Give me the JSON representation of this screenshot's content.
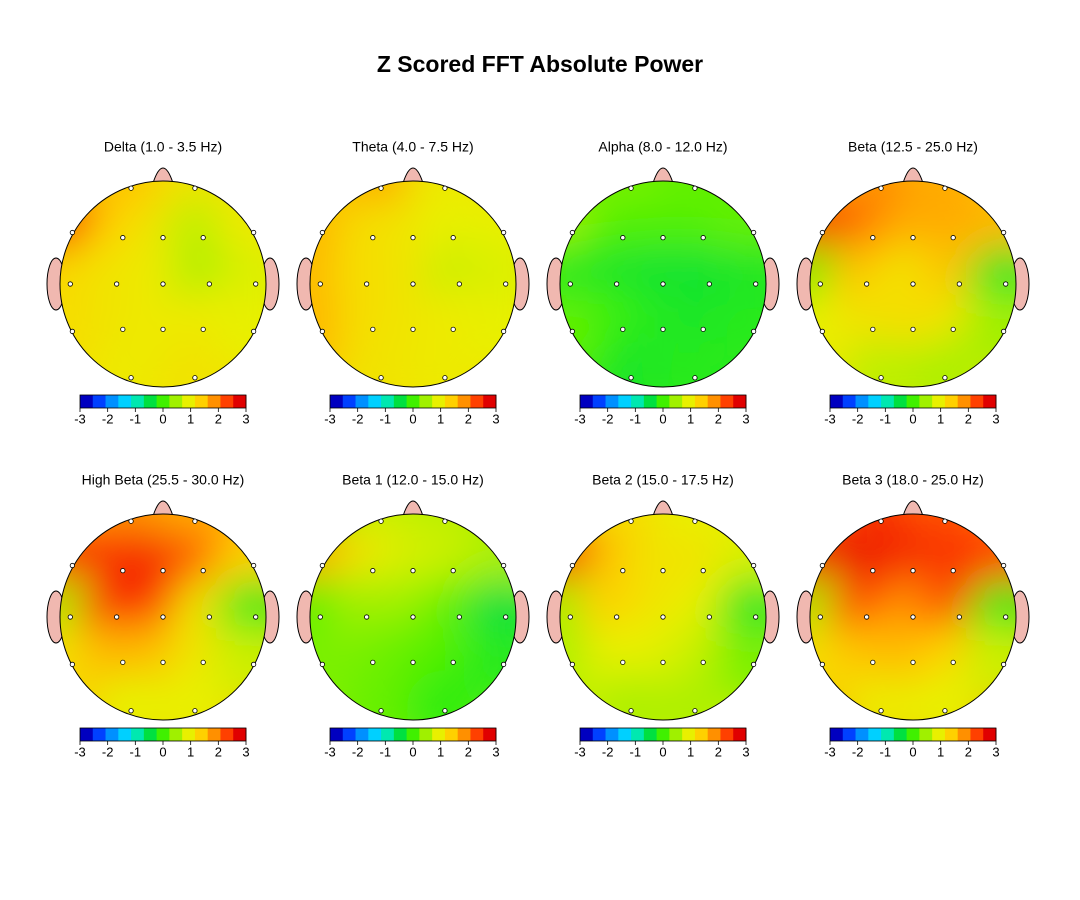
{
  "title": "Z Scored FFT Absolute Power",
  "chart_data": [
    {
      "type": "topomap",
      "title": "Delta (1.0 - 3.5 Hz)",
      "values": [
        1.6,
        1.2,
        2.6,
        1.5,
        1.2,
        0.7,
        1.1,
        1.4,
        1.2,
        1.1,
        0.6,
        0.9,
        1.3,
        1.2,
        1.1,
        1.1,
        1.0,
        1.1,
        1.2
      ],
      "zlim": [
        -3,
        3
      ],
      "zticks": [
        -3,
        -2,
        -1,
        0,
        1,
        2,
        3
      ],
      "colors": [
        "#0000c0",
        "#0040ff",
        "#0090ff",
        "#00d0ff",
        "#00e8b0",
        "#00e040",
        "#40f000",
        "#a0f000",
        "#e8f000",
        "#ffd000",
        "#ff9000",
        "#ff4000",
        "#e00000"
      ]
    },
    {
      "type": "topomap",
      "title": "Theta (4.0 - 7.5 Hz)",
      "values": [
        1.8,
        1.1,
        1.7,
        1.3,
        1.2,
        1.0,
        1.0,
        1.7,
        1.3,
        1.2,
        0.8,
        0.9,
        1.7,
        1.3,
        1.2,
        1.1,
        1.0,
        1.2,
        1.1
      ],
      "zlim": [
        -3,
        3
      ],
      "zticks": [
        -3,
        -2,
        -1,
        0,
        1,
        2,
        3
      ],
      "colors": [
        "#0000c0",
        "#0040ff",
        "#0090ff",
        "#00d0ff",
        "#00e8b0",
        "#00e040",
        "#40f000",
        "#a0f000",
        "#e8f000",
        "#ffd000",
        "#ff9000",
        "#ff4000",
        "#e00000"
      ]
    },
    {
      "type": "topomap",
      "title": "Alpha (8.0 - 12.0 Hz)",
      "values": [
        0.3,
        0.2,
        0.5,
        0.1,
        0.1,
        0.1,
        0.2,
        -0.2,
        -0.3,
        -0.4,
        -0.4,
        -0.3,
        0.2,
        0.0,
        -0.2,
        -0.3,
        -0.2,
        -0.3,
        -0.2
      ],
      "zlim": [
        -3,
        3
      ],
      "zticks": [
        -3,
        -2,
        -1,
        0,
        1,
        2,
        3
      ],
      "colors": [
        "#0000c0",
        "#0040ff",
        "#0090ff",
        "#00d0ff",
        "#00e8b0",
        "#00e040",
        "#40f000",
        "#a0f000",
        "#e8f000",
        "#ffd000",
        "#ff9000",
        "#ff4000",
        "#e00000"
      ]
    },
    {
      "type": "topomap",
      "title": "Beta (12.5 - 25.0 Hz)",
      "values": [
        2.0,
        1.8,
        2.6,
        2.2,
        1.8,
        1.8,
        1.7,
        0.2,
        1.6,
        1.2,
        1.6,
        -0.3,
        1.0,
        1.2,
        1.3,
        1.2,
        0.5,
        0.7,
        0.6
      ],
      "zlim": [
        -3,
        3
      ],
      "zticks": [
        -3,
        -2,
        -1,
        0,
        1,
        2,
        3
      ],
      "colors": [
        "#0000c0",
        "#0040ff",
        "#0090ff",
        "#00d0ff",
        "#00e8b0",
        "#00e040",
        "#40f000",
        "#a0f000",
        "#e8f000",
        "#ffd000",
        "#ff9000",
        "#ff4000",
        "#e00000"
      ]
    },
    {
      "type": "topomap",
      "title": "High Beta (25.5 - 30.0 Hz)",
      "values": [
        2.0,
        1.8,
        2.6,
        2.6,
        2.7,
        2.3,
        1.5,
        0.5,
        2.6,
        2.6,
        1.2,
        -0.2,
        1.3,
        1.7,
        1.7,
        1.2,
        0.8,
        1.0,
        1.0
      ],
      "zlim": [
        -3,
        3
      ],
      "zticks": [
        -3,
        -2,
        -1,
        0,
        1,
        2,
        3
      ],
      "colors": [
        "#0000c0",
        "#0040ff",
        "#0090ff",
        "#00d0ff",
        "#00e8b0",
        "#00e040",
        "#40f000",
        "#a0f000",
        "#e8f000",
        "#ffd000",
        "#ff9000",
        "#ff4000",
        "#e00000"
      ]
    },
    {
      "type": "topomap",
      "title": "Beta 1 (12.0 - 15.0 Hz)",
      "values": [
        0.8,
        0.7,
        1.8,
        1.2,
        0.9,
        0.8,
        0.6,
        0.1,
        0.5,
        0.5,
        0.2,
        -0.5,
        0.3,
        0.3,
        0.2,
        0.1,
        -0.2,
        0.2,
        -0.1
      ],
      "zlim": [
        -3,
        3
      ],
      "zticks": [
        -3,
        -2,
        -1,
        0,
        1,
        2,
        3
      ],
      "colors": [
        "#0000c0",
        "#0040ff",
        "#0090ff",
        "#00d0ff",
        "#00e8b0",
        "#00e040",
        "#40f000",
        "#a0f000",
        "#e8f000",
        "#ffd000",
        "#ff9000",
        "#ff4000",
        "#e00000"
      ]
    },
    {
      "type": "topomap",
      "title": "Beta 2 (15.0 - 17.5 Hz)",
      "values": [
        1.3,
        1.0,
        2.6,
        1.6,
        1.2,
        1.2,
        0.9,
        0.5,
        1.5,
        1.2,
        1.0,
        -0.3,
        0.6,
        1.0,
        1.0,
        0.8,
        0.3,
        0.6,
        0.6
      ],
      "zlim": [
        -3,
        3
      ],
      "zticks": [
        -3,
        -2,
        -1,
        0,
        1,
        2,
        3
      ],
      "colors": [
        "#0000c0",
        "#0040ff",
        "#0090ff",
        "#00d0ff",
        "#00e8b0",
        "#00e040",
        "#40f000",
        "#a0f000",
        "#e8f000",
        "#ffd000",
        "#ff9000",
        "#ff4000",
        "#e00000"
      ]
    },
    {
      "type": "topomap",
      "title": "Beta 3 (18.0 - 25.0 Hz)",
      "values": [
        2.6,
        2.4,
        2.8,
        2.8,
        2.7,
        2.6,
        2.5,
        0.5,
        2.5,
        2.0,
        2.5,
        -0.2,
        1.3,
        1.6,
        1.7,
        1.5,
        0.8,
        1.1,
        1.0
      ],
      "zlim": [
        -3,
        3
      ],
      "zticks": [
        -3,
        -2,
        -1,
        0,
        1,
        2,
        3
      ],
      "colors": [
        "#0000c0",
        "#0040ff",
        "#0090ff",
        "#00d0ff",
        "#00e8b0",
        "#00e040",
        "#40f000",
        "#a0f000",
        "#e8f000",
        "#ffd000",
        "#ff9000",
        "#ff4000",
        "#e00000"
      ]
    }
  ]
}
